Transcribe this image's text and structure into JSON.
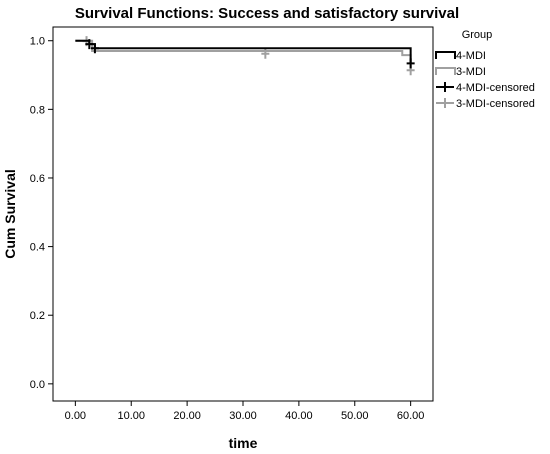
{
  "chart_data": {
    "type": "line",
    "title": "Survival Functions: Success and satisfactory survival",
    "xlabel": "time",
    "ylabel": "Cum Survival",
    "xlim": [
      -4,
      64
    ],
    "ylim": [
      -0.05,
      1.04
    ],
    "xticks": [
      0,
      10,
      20,
      30,
      40,
      50,
      60
    ],
    "xtick_labels": [
      "0.00",
      "10.00",
      "20.00",
      "30.00",
      "40.00",
      "50.00",
      "60.00"
    ],
    "yticks": [
      0,
      0.2,
      0.4,
      0.6,
      0.8,
      1.0
    ],
    "ytick_labels": [
      "0.0",
      "0.2",
      "0.4",
      "0.6",
      "0.8",
      "1.0"
    ],
    "grid": false,
    "legend_title": "Group",
    "legend_position": "right",
    "series": [
      {
        "name": "4-MDI",
        "color": "#000000",
        "steps": [
          [
            0,
            1.0
          ],
          [
            2.5,
            0.99
          ],
          [
            3.5,
            0.978
          ],
          [
            59,
            0.978
          ],
          [
            60,
            0.934
          ]
        ],
        "censored_name": "4-MDI-censored",
        "censored": [
          [
            2.5,
            0.99
          ],
          [
            3.5,
            0.978
          ],
          [
            60,
            0.934
          ]
        ]
      },
      {
        "name": "3-MDI",
        "color": "#a0a0a0",
        "steps": [
          [
            0,
            1.0
          ],
          [
            3,
            0.97
          ],
          [
            58.5,
            0.958
          ],
          [
            60,
            0.914
          ]
        ],
        "censored_name": "3-MDI-censored",
        "censored": [
          [
            2,
            0.999
          ],
          [
            34,
            0.962
          ],
          [
            60,
            0.914
          ]
        ]
      }
    ]
  }
}
